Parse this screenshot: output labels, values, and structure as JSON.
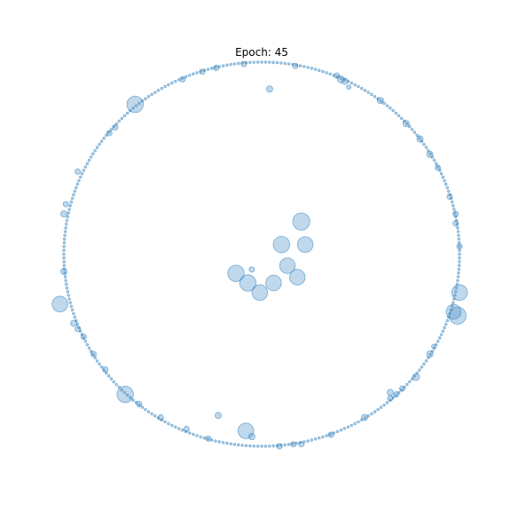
{
  "chart_data": {
    "type": "scatter",
    "title": "Epoch: 45",
    "xlabel": "",
    "ylabel": "",
    "xlim": [
      -1.05,
      1.05
    ],
    "ylim": [
      -1.05,
      1.05
    ],
    "grid": false,
    "axes_visible": false,
    "marker_color": "#4a90c8",
    "marker_edge_color": "#1f77b4",
    "marker_alpha": 0.35,
    "ring_radius": 1.0,
    "ring_point_count": 320,
    "ring_point_value": 1,
    "points": [
      {
        "x": 0.2,
        "y": 0.17,
        "value": 60
      },
      {
        "x": 0.1,
        "y": 0.05,
        "value": 55
      },
      {
        "x": 0.22,
        "y": 0.05,
        "value": 50
      },
      {
        "x": 0.13,
        "y": -0.06,
        "value": 50
      },
      {
        "x": -0.13,
        "y": -0.1,
        "value": 55
      },
      {
        "x": -0.07,
        "y": -0.15,
        "value": 55
      },
      {
        "x": 0.06,
        "y": -0.15,
        "value": 50
      },
      {
        "x": 0.18,
        "y": -0.12,
        "value": 50
      },
      {
        "x": -0.01,
        "y": -0.2,
        "value": 50
      },
      {
        "x": -0.05,
        "y": -0.08,
        "value": 6
      },
      {
        "x": 0.04,
        "y": 0.86,
        "value": 8
      },
      {
        "x": -0.22,
        "y": -0.84,
        "value": 8
      },
      {
        "x": -0.64,
        "y": 0.78,
        "value": 55
      },
      {
        "x": -1.02,
        "y": -0.26,
        "value": 50
      },
      {
        "x": -0.69,
        "y": -0.73,
        "value": 55
      },
      {
        "x": -0.08,
        "y": -0.92,
        "value": 50
      },
      {
        "x": 0.99,
        "y": -0.32,
        "value": 60
      },
      {
        "x": 1.0,
        "y": -0.2,
        "value": 50
      },
      {
        "x": 0.97,
        "y": -0.3,
        "value": 45
      },
      {
        "x": 0.4,
        "y": 0.91,
        "value": 10
      },
      {
        "x": 0.42,
        "y": 0.9,
        "value": 8
      },
      {
        "x": 0.6,
        "y": 0.8,
        "value": 8
      },
      {
        "x": 0.73,
        "y": 0.68,
        "value": 8
      },
      {
        "x": 0.8,
        "y": 0.6,
        "value": 8
      },
      {
        "x": 0.85,
        "y": 0.52,
        "value": 8
      },
      {
        "x": 0.89,
        "y": 0.45,
        "value": 6
      },
      {
        "x": 0.95,
        "y": 0.3,
        "value": 6
      },
      {
        "x": 0.98,
        "y": 0.21,
        "value": 6
      },
      {
        "x": 0.98,
        "y": 0.16,
        "value": 6
      },
      {
        "x": 1.0,
        "y": 0.04,
        "value": 6
      },
      {
        "x": 0.85,
        "y": -0.52,
        "value": 8
      },
      {
        "x": 0.78,
        "y": -0.64,
        "value": 10
      },
      {
        "x": 0.71,
        "y": -0.7,
        "value": 6
      },
      {
        "x": 0.65,
        "y": -0.75,
        "value": 6
      },
      {
        "x": 0.52,
        "y": -0.85,
        "value": 8
      },
      {
        "x": 0.35,
        "y": -0.94,
        "value": 6
      },
      {
        "x": 0.16,
        "y": -0.99,
        "value": 6
      },
      {
        "x": 0.2,
        "y": -0.99,
        "value": 6
      },
      {
        "x": 0.09,
        "y": -1.0,
        "value": 6
      },
      {
        "x": -0.05,
        "y": -0.95,
        "value": 8
      },
      {
        "x": -0.27,
        "y": -0.96,
        "value": 6
      },
      {
        "x": -0.38,
        "y": -0.91,
        "value": 6
      },
      {
        "x": -0.51,
        "y": -0.85,
        "value": 6
      },
      {
        "x": -0.62,
        "y": -0.78,
        "value": 6
      },
      {
        "x": -0.79,
        "y": -0.6,
        "value": 6
      },
      {
        "x": -0.85,
        "y": -0.52,
        "value": 6
      },
      {
        "x": -0.9,
        "y": -0.43,
        "value": 6
      },
      {
        "x": -0.95,
        "y": -0.36,
        "value": 8
      },
      {
        "x": -0.93,
        "y": -0.39,
        "value": 6
      },
      {
        "x": -1.0,
        "y": -0.09,
        "value": 8
      },
      {
        "x": -1.0,
        "y": 0.21,
        "value": 8
      },
      {
        "x": -0.99,
        "y": 0.26,
        "value": 6
      },
      {
        "x": -0.93,
        "y": 0.43,
        "value": 6
      },
      {
        "x": -0.77,
        "y": 0.63,
        "value": 6
      },
      {
        "x": -0.74,
        "y": 0.66,
        "value": 6
      },
      {
        "x": -0.4,
        "y": 0.91,
        "value": 6
      },
      {
        "x": -0.3,
        "y": 0.95,
        "value": 6
      },
      {
        "x": -0.23,
        "y": 0.97,
        "value": 6
      },
      {
        "x": -0.09,
        "y": 0.99,
        "value": 6
      },
      {
        "x": 0.17,
        "y": 0.98,
        "value": 6
      },
      {
        "x": 0.38,
        "y": 0.93,
        "value": 6
      },
      {
        "x": 0.44,
        "y": 0.87,
        "value": 4
      },
      {
        "x": 0.87,
        "y": -0.48,
        "value": 4
      },
      {
        "x": 0.65,
        "y": -0.72,
        "value": 8
      },
      {
        "x": 0.68,
        "y": -0.73,
        "value": 6
      }
    ]
  }
}
